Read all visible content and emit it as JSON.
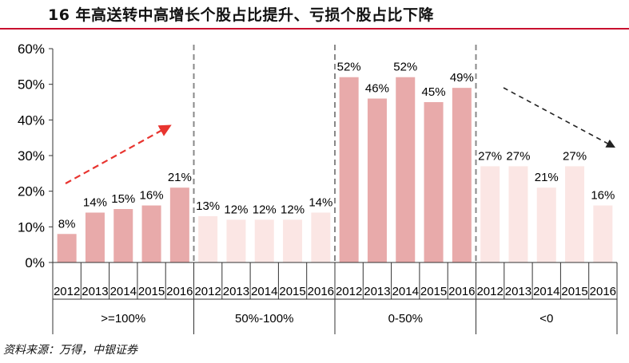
{
  "title": "16 年高送转中高增长个股占比提升、亏损个股占比下降",
  "source": "资料来源：万得，中银证券",
  "chart_data": {
    "type": "bar",
    "ylim": [
      0,
      60
    ],
    "yticks": [
      "0%",
      "10%",
      "20%",
      "30%",
      "40%",
      "50%",
      "60%"
    ],
    "groups": [
      {
        "label": ">=100%",
        "years": [
          "2012",
          "2013",
          "2014",
          "2015",
          "2016"
        ],
        "values": [
          8,
          14,
          15,
          16,
          21
        ],
        "labels": [
          "8%",
          "14%",
          "15%",
          "16%",
          "21%"
        ],
        "color": "#e8aaaa"
      },
      {
        "label": "50%-100%",
        "years": [
          "2012",
          "2013",
          "2014",
          "2015",
          "2016"
        ],
        "values": [
          13,
          12,
          12,
          12,
          14
        ],
        "labels": [
          "13%",
          "12%",
          "12%",
          "12%",
          "14%"
        ],
        "color": "#fbe6e4"
      },
      {
        "label": "0-50%",
        "years": [
          "2012",
          "2013",
          "2014",
          "2015",
          "2016"
        ],
        "values": [
          52,
          46,
          52,
          45,
          49
        ],
        "labels": [
          "52%",
          "46%",
          "52%",
          "45%",
          "49%"
        ],
        "color": "#e8aaaa"
      },
      {
        "label": "<0",
        "years": [
          "2012",
          "2013",
          "2014",
          "2015",
          "2016"
        ],
        "values": [
          27,
          27,
          21,
          27,
          16
        ],
        "labels": [
          "27%",
          "27%",
          "21%",
          "27%",
          "16%"
        ],
        "color": "#fbe6e4"
      }
    ],
    "arrow_colors": {
      "up": "#e8342f",
      "down": "#222222"
    }
  }
}
